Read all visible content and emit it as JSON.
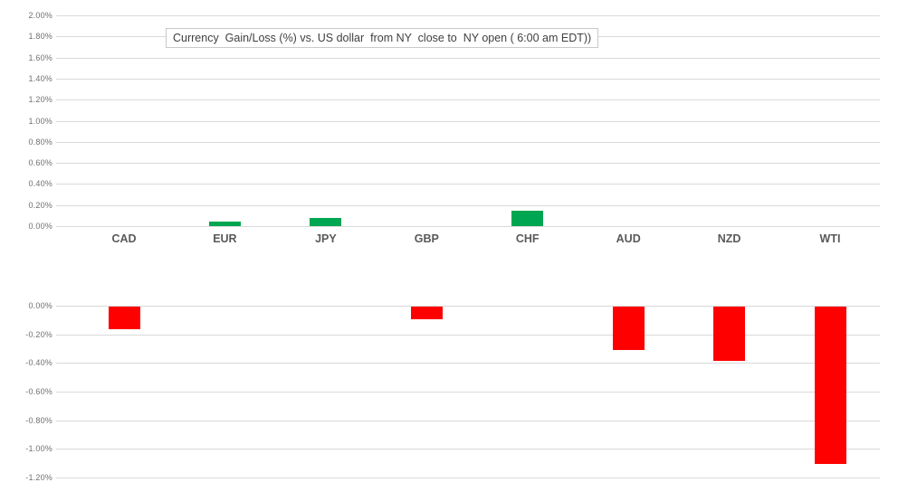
{
  "chart_data": {
    "type": "bar",
    "title": "Currency  Gain/Loss (%) vs. US dollar  from NY  close to  NY open ( 6:00 am EDT))",
    "categories": [
      "CAD",
      "EUR",
      "JPY",
      "GBP",
      "CHF",
      "AUD",
      "NZD",
      "WTI"
    ],
    "values": [
      -0.16,
      0.04,
      0.08,
      -0.09,
      0.15,
      -0.3,
      -0.38,
      -1.1
    ],
    "unit": "%",
    "grid": true,
    "legend": false,
    "bar_colors": {
      "positive": "#00a651",
      "negative": "#fe0000"
    },
    "gridline_color": "#d9d9d9",
    "axes": {
      "top_panel": {
        "range": [
          0.0,
          2.0
        ],
        "step": 0.2,
        "tick_labels": [
          "2.00%",
          "1.80%",
          "1.60%",
          "1.40%",
          "1.20%",
          "1.00%",
          "0.80%",
          "0.60%",
          "0.40%",
          "0.20%",
          "0.00%"
        ]
      },
      "bottom_panel": {
        "range": [
          0.0,
          -1.2
        ],
        "step": -0.2,
        "tick_labels": [
          "0.00%",
          "-0.20%",
          "-0.40%",
          "-0.60%",
          "-0.80%",
          "-1.00%",
          "-1.20%"
        ]
      }
    }
  }
}
